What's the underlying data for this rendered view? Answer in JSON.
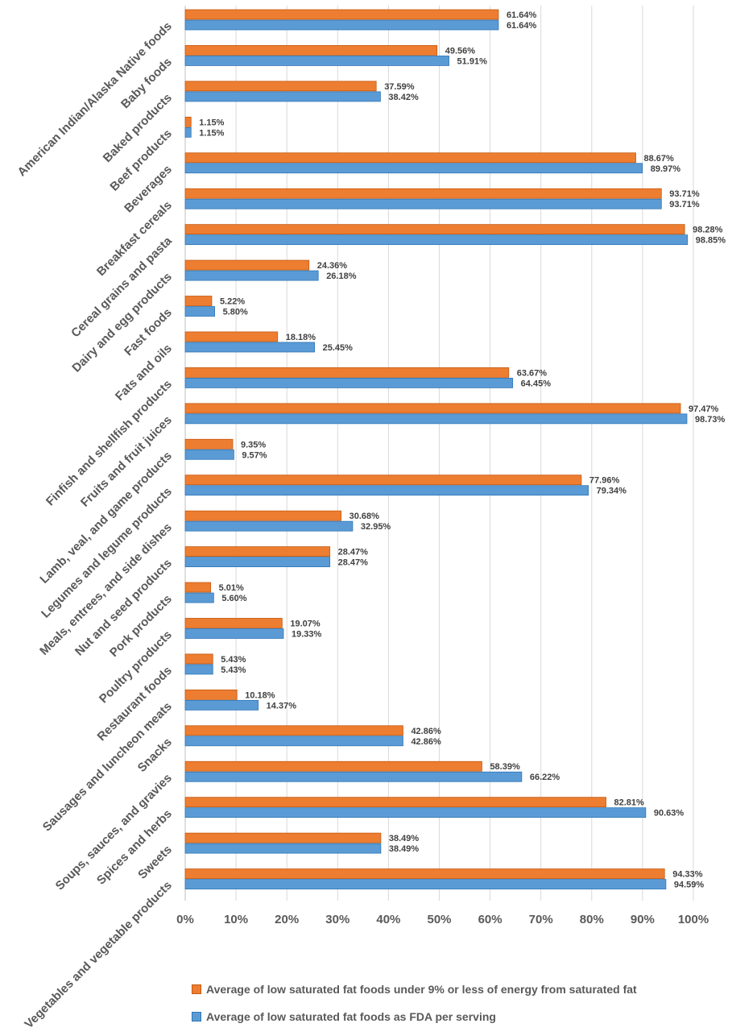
{
  "chart_data": {
    "type": "bar",
    "orientation": "horizontal",
    "categories": [
      "American Indian/Alaska Native foods",
      "Baby foods",
      "Baked products",
      "Beef products",
      "Beverages",
      "Breakfast cereals",
      "Cereal grains and pasta",
      "Dairy and egg products",
      "Fast foods",
      "Fats and oils",
      "Finfish and shellfish products",
      "Fruits and fruit juices",
      "Lamb, veal, and game products",
      "Legumes and legume products",
      "Meals, entrees, and side dishes",
      "Nut and seed products",
      "Pork products",
      "Poultry products",
      "Restaurant foods",
      "Sausages and luncheon meats",
      "Snacks",
      "Soups, sauces, and gravies",
      "Spices and herbs",
      "Sweets",
      "Vegetables and vegetable products"
    ],
    "series": [
      {
        "name": "Average of low saturated fat foods under 9% or less of energy from saturated fat",
        "color": "#ED7D31",
        "values": [
          61.64,
          49.56,
          37.59,
          1.15,
          88.67,
          93.71,
          98.28,
          24.36,
          5.22,
          18.18,
          63.67,
          97.47,
          9.35,
          77.96,
          30.68,
          28.47,
          5.01,
          19.07,
          5.43,
          10.18,
          42.86,
          58.39,
          82.81,
          38.49,
          94.33
        ],
        "labels": [
          "61.64%",
          "49.56%",
          "37.59%",
          "1.15%",
          "88.67%",
          "93.71%",
          "98.28%",
          "24.36%",
          "5.22%",
          "18.18%",
          "63.67%",
          "97.47%",
          "9.35%",
          "77.96%",
          "30.68%",
          "28.47%",
          "5.01%",
          "19.07%",
          "5.43%",
          "10.18%",
          "42.86%",
          "58.39%",
          "82.81%",
          "38.49%",
          "94.33%"
        ]
      },
      {
        "name": "Average of low saturated fat foods as FDA per serving",
        "color": "#5B9BD5",
        "values": [
          61.64,
          51.91,
          38.42,
          1.15,
          89.97,
          93.71,
          98.85,
          26.18,
          5.8,
          25.45,
          64.45,
          98.73,
          9.57,
          79.34,
          32.95,
          28.47,
          5.6,
          19.33,
          5.43,
          14.37,
          42.86,
          66.22,
          90.63,
          38.49,
          94.59
        ],
        "labels": [
          "61.64%",
          "51.91%",
          "38.42%",
          "1.15%",
          "89.97%",
          "93.71%",
          "98.85%",
          "26.18%",
          "5.80%",
          "25.45%",
          "64.45%",
          "98.73%",
          "9.57%",
          "79.34%",
          "32.95%",
          "28.47%",
          "5.60%",
          "19.33%",
          "5.43%",
          "14.37%",
          "42.86%",
          "66.22%",
          "90.63%",
          "38.49%",
          "94.59%"
        ]
      }
    ],
    "xlim": [
      0,
      100
    ],
    "xticks": [
      "0%",
      "10%",
      "20%",
      "30%",
      "40%",
      "50%",
      "60%",
      "70%",
      "80%",
      "90%",
      "100%"
    ],
    "grid": true,
    "legend_position": "bottom",
    "title": "",
    "xlabel": "",
    "ylabel": ""
  }
}
